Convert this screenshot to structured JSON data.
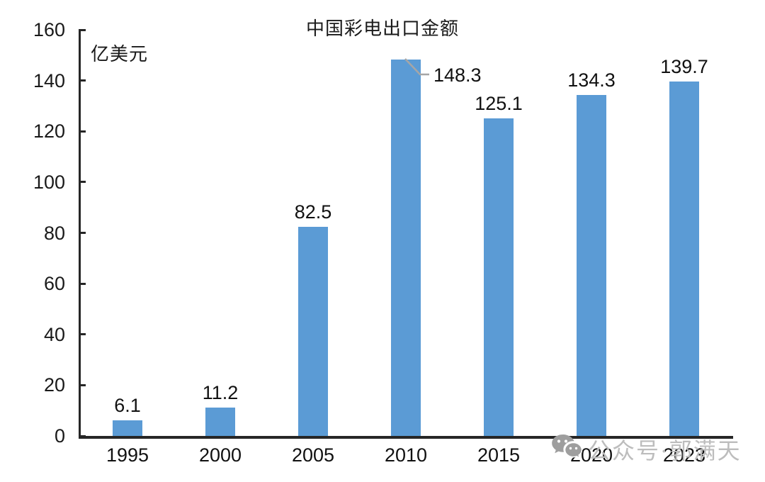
{
  "chart_data": {
    "type": "bar",
    "title": "中国彩电出口金额",
    "unit_label": "亿美元",
    "categories": [
      "1995",
      "2000",
      "2005",
      "2010",
      "2015",
      "2020",
      "2023"
    ],
    "values": [
      6.1,
      11.2,
      82.5,
      148.3,
      125.1,
      134.3,
      139.7
    ],
    "data_labels": [
      "6.1",
      "11.2",
      "82.5",
      "148.3",
      "125.1",
      "134.3",
      "139.7"
    ],
    "y_ticks": [
      0,
      20,
      40,
      60,
      80,
      100,
      120,
      140,
      160
    ],
    "ylim": [
      0,
      160
    ],
    "xlabel": "",
    "ylabel": "亿美元",
    "grid": "off",
    "legend": "none",
    "bar_color": "#5B9BD5",
    "axis_color": "#262626",
    "text_color": "#111111",
    "leader_line_color": "#A6A6A6",
    "callout": {
      "category": "2010",
      "label": "148.3"
    }
  },
  "watermark": {
    "text": "公众号·郭满天",
    "icon": "wechat-icon",
    "color": "#BDBDBD"
  }
}
